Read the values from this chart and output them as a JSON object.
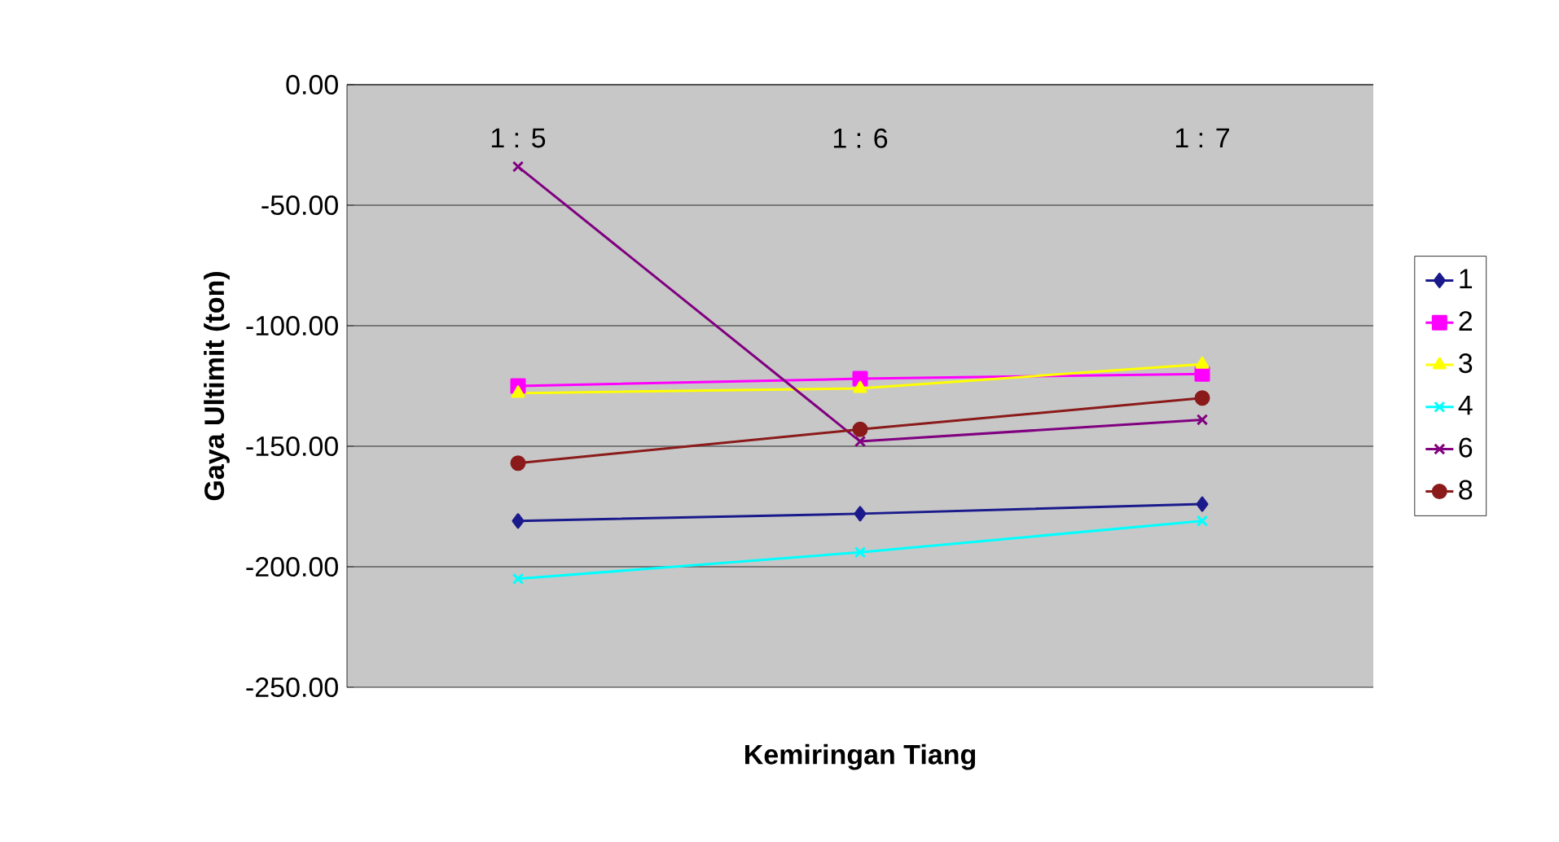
{
  "chart_data": {
    "type": "line",
    "xlabel": "Kemiringan Tiang",
    "ylabel": "Gaya Ultimit (ton)",
    "categories": [
      "1 : 5",
      "1 : 6",
      "1 : 7"
    ],
    "ylim": [
      -250,
      0
    ],
    "yticks": [
      {
        "value": -250,
        "label": "-250.00"
      },
      {
        "value": -200,
        "label": "-200.00"
      },
      {
        "value": -150,
        "label": "-150.00"
      },
      {
        "value": -100,
        "label": "-100.00"
      },
      {
        "value": -50,
        "label": "-50.00"
      },
      {
        "value": 0,
        "label": "0.00"
      }
    ],
    "grid": "y",
    "legend": "right",
    "line_style": "solid",
    "series": [
      {
        "name": "1",
        "color": "#1a1a8c",
        "marker": "diamond",
        "values": [
          -181,
          -178,
          -174
        ]
      },
      {
        "name": "2",
        "color": "#ff00ff",
        "marker": "square",
        "values": [
          -125,
          -122,
          -120
        ]
      },
      {
        "name": "3",
        "color": "#ffff00",
        "marker": "triangle",
        "values": [
          -128,
          -126,
          -116
        ]
      },
      {
        "name": "4",
        "color": "#00ffff",
        "marker": "cross",
        "values": [
          -205,
          -194,
          -181
        ]
      },
      {
        "name": "6",
        "color": "#800080",
        "marker": "cross",
        "values": [
          -34,
          -148,
          -139
        ]
      },
      {
        "name": "8",
        "color": "#8b1a1a",
        "marker": "circle",
        "values": [
          -157,
          -143,
          -130
        ]
      }
    ]
  }
}
